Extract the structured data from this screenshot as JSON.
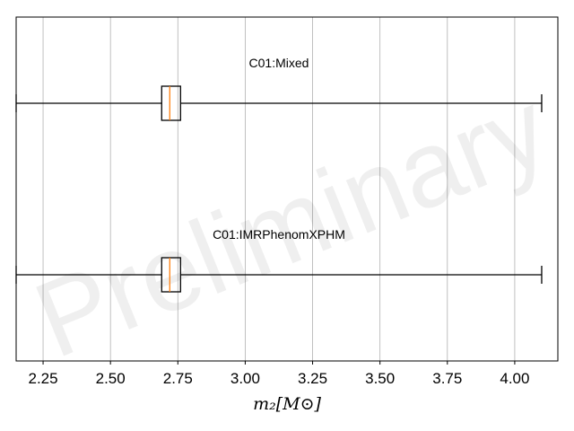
{
  "chart_data": {
    "type": "boxplot",
    "orientation": "horizontal",
    "title": "",
    "xlabel": "m₂[M⊙]",
    "ylabel": "",
    "xlim": [
      2.15,
      4.16
    ],
    "xticks": [
      "2.25",
      "2.50",
      "2.75",
      "3.00",
      "3.25",
      "3.50",
      "3.75",
      "4.00"
    ],
    "grid": "x-major",
    "watermark": "Preliminary",
    "series": [
      {
        "name": "C01:Mixed",
        "whisker_low": 2.15,
        "q1": 2.69,
        "median": 2.72,
        "q3": 2.76,
        "whisker_high": 4.1
      },
      {
        "name": "C01:IMRPhenomXPHM",
        "whisker_low": 2.15,
        "q1": 2.69,
        "median": 2.72,
        "q3": 2.76,
        "whisker_high": 4.1
      }
    ],
    "colors": {
      "box": "#000000",
      "median": "#ff7f0e",
      "grid": "#b0b0b0",
      "watermark": "#000000"
    }
  }
}
